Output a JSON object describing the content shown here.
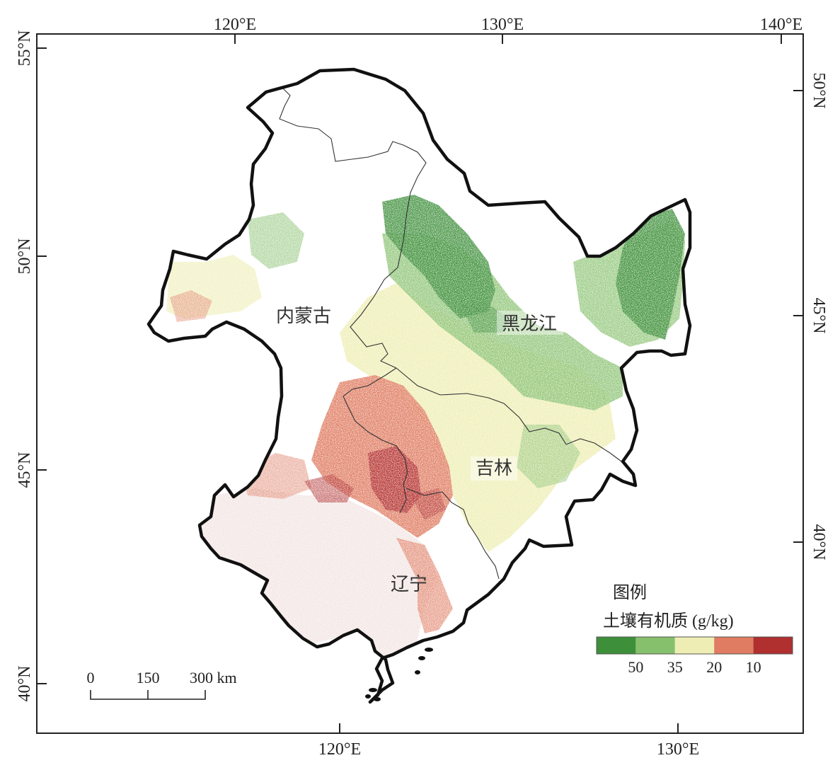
{
  "map": {
    "top_axis_labels": [
      "120°E",
      "130°E",
      "140°E"
    ],
    "bottom_axis_labels": [
      "120°E",
      "130°E"
    ],
    "left_axis_labels": [
      "55°N",
      "50°N",
      "45°N",
      "40°N"
    ],
    "right_axis_labels": [
      "50°N",
      "45°N",
      "40°N"
    ],
    "provinces": [
      "内蒙古",
      "黑龙江",
      "吉林",
      "辽宁"
    ]
  },
  "legend": {
    "title": "图例",
    "subtitle": "土壤有机质 (g/kg)",
    "classes": [
      {
        "color": "#3d8f3a"
      },
      {
        "color": "#86c06c"
      },
      {
        "color": "#eeeeb4"
      },
      {
        "color": "#df7c62"
      },
      {
        "color": "#b02f2f"
      }
    ],
    "break_labels": [
      "50",
      "35",
      "20",
      "10"
    ]
  },
  "scale_bar": {
    "labels": [
      "0",
      "150",
      "300 km"
    ]
  }
}
